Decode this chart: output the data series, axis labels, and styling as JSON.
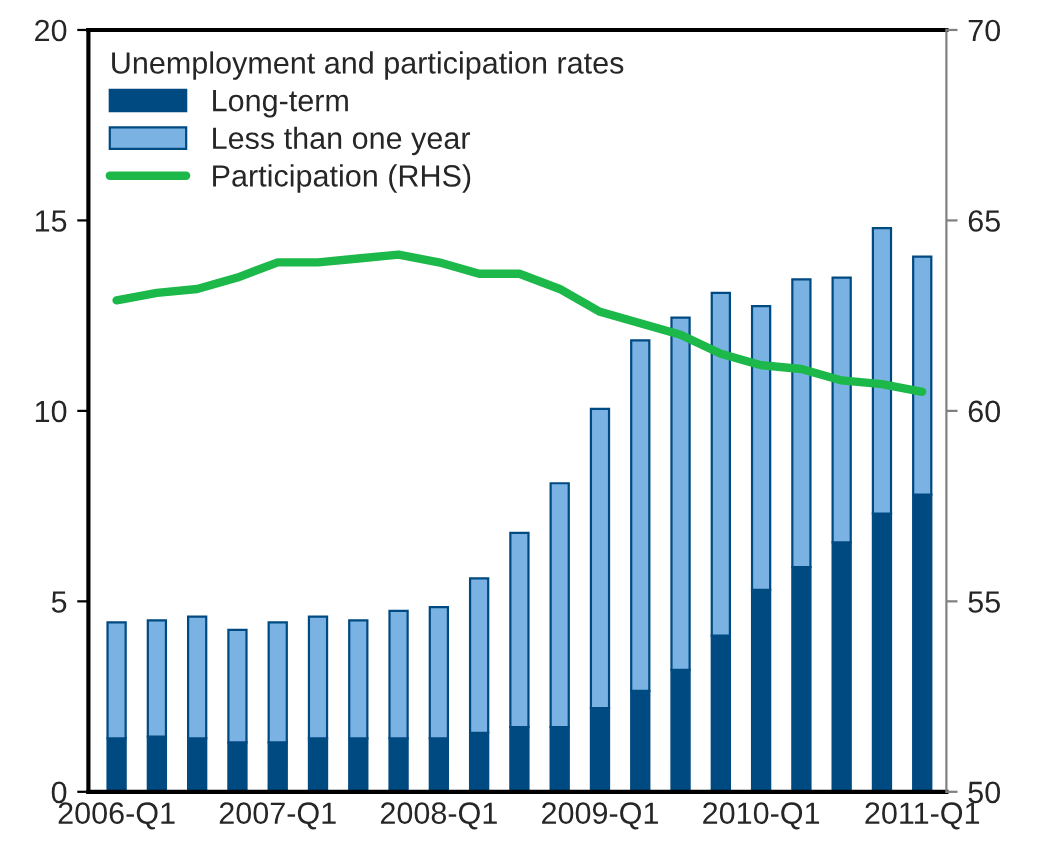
{
  "chart_data": {
    "type": "bar",
    "stacked": true,
    "legend_title": "Unemployment and participation rates",
    "categories": [
      "2006-Q1",
      null,
      null,
      null,
      "2007-Q1",
      null,
      null,
      null,
      "2008-Q1",
      null,
      null,
      null,
      "2009-Q1",
      null,
      null,
      null,
      "2010-Q1",
      null,
      null,
      null,
      "2011-Q1"
    ],
    "series": [
      {
        "name": "Long-term",
        "color": "#004a82",
        "values": [
          1.4,
          1.45,
          1.4,
          1.3,
          1.3,
          1.4,
          1.4,
          1.4,
          1.4,
          1.55,
          1.7,
          1.7,
          2.2,
          2.65,
          3.2,
          4.1,
          5.3,
          5.9,
          6.55,
          7.3,
          7.8
        ]
      },
      {
        "name": "Less than one year",
        "color": "#7ab3e3",
        "values": [
          3.05,
          3.05,
          3.2,
          2.95,
          3.15,
          3.2,
          3.1,
          3.35,
          3.45,
          4.05,
          5.1,
          6.4,
          7.85,
          9.2,
          9.25,
          9.0,
          7.45,
          7.55,
          6.95,
          7.5,
          6.25
        ]
      },
      {
        "name": "Participation (RHS)",
        "type": "line",
        "axis": "y2",
        "color": "#1db84a",
        "values": [
          62.9,
          63.1,
          63.2,
          63.5,
          63.9,
          63.9,
          64.0,
          64.1,
          63.9,
          63.6,
          63.6,
          63.2,
          62.6,
          62.3,
          62.0,
          61.5,
          61.2,
          61.1,
          60.8,
          60.7,
          60.5
        ]
      }
    ],
    "ylim": [
      0,
      20
    ],
    "yticks": [
      0,
      5,
      10,
      15,
      20
    ],
    "y2lim": [
      50,
      70
    ],
    "y2ticks": [
      50,
      55,
      60,
      65,
      70
    ],
    "legend": "top left",
    "grid": false
  }
}
